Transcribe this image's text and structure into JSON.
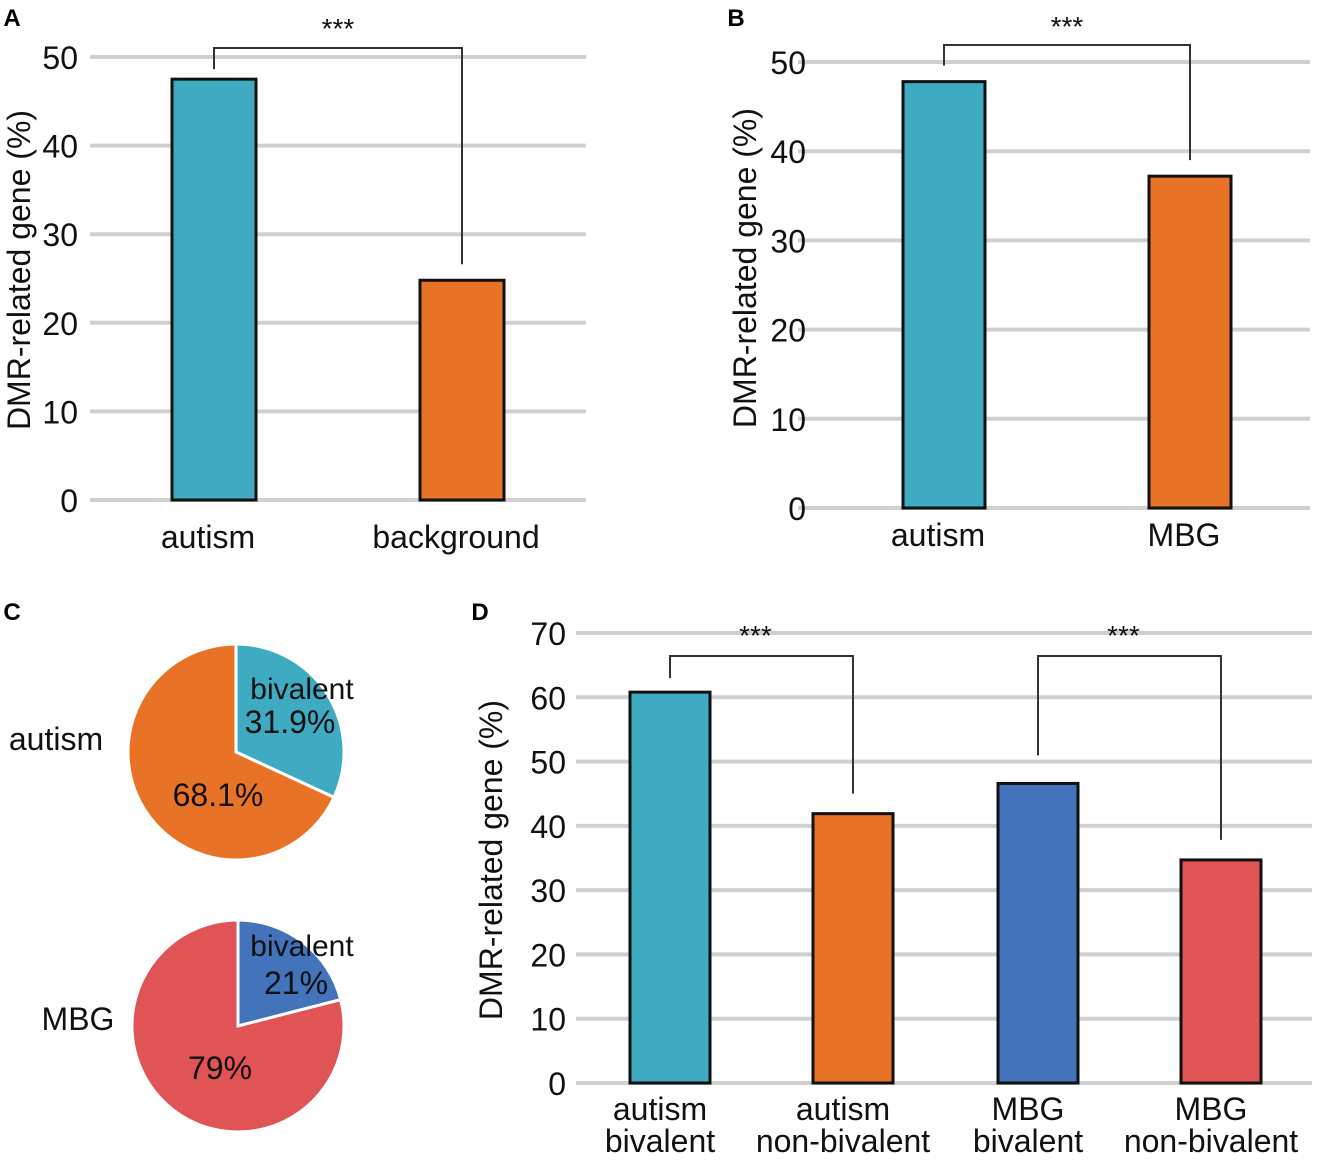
{
  "figure": {
    "colors": {
      "autism": "#3eabc3",
      "background": "#e87326",
      "mbg": "#e87326",
      "non_bivalent": "#e87326",
      "mbg_bivalent": "#4273bb",
      "mbg_non_bivalent": "#e05456",
      "grid": "#d0d0d0",
      "bracket": "#333333",
      "pie_edge": "#ffffff"
    }
  },
  "chart_data": [
    {
      "panel": "A",
      "type": "bar",
      "title": "",
      "xlabel": "",
      "ylabel": "DMR-related gene (%)",
      "ylim": [
        0,
        50
      ],
      "yticks": [
        0,
        10,
        20,
        30,
        40,
        50
      ],
      "grid": true,
      "categories": [
        "autism",
        "background"
      ],
      "values": [
        47.5,
        24.8
      ],
      "significance": [
        {
          "from": 0,
          "to": 1,
          "label": "***"
        }
      ]
    },
    {
      "panel": "B",
      "type": "bar",
      "title": "",
      "xlabel": "",
      "ylabel": "DMR-related gene (%)",
      "ylim": [
        0,
        50
      ],
      "yticks": [
        0,
        10,
        20,
        30,
        40,
        50
      ],
      "grid": true,
      "categories": [
        "autism",
        "MBG"
      ],
      "values": [
        47.8,
        37.2
      ],
      "significance": [
        {
          "from": 0,
          "to": 1,
          "label": "***"
        }
      ]
    },
    {
      "panel": "C",
      "type": "pie",
      "row_label": "autism",
      "slices": [
        {
          "label": "bivalent",
          "value": 31.9,
          "value_label": "31.9%"
        },
        {
          "label": "",
          "value": 68.1,
          "value_label": "68.1%"
        }
      ]
    },
    {
      "panel": "C",
      "type": "pie",
      "row_label": "MBG",
      "slices": [
        {
          "label": "bivalent",
          "value": 21,
          "value_label": "21%"
        },
        {
          "label": "",
          "value": 79,
          "value_label": "79%"
        }
      ]
    },
    {
      "panel": "D",
      "type": "bar",
      "title": "",
      "xlabel": "",
      "ylabel": "DMR-related gene (%)",
      "ylim": [
        0,
        70
      ],
      "yticks": [
        0,
        10,
        20,
        30,
        40,
        50,
        60,
        70
      ],
      "grid": true,
      "categories": [
        [
          "autism",
          "bivalent"
        ],
        [
          "autism",
          "non-bivalent"
        ],
        [
          "MBG",
          "bivalent"
        ],
        [
          "MBG",
          "non-bivalent"
        ]
      ],
      "values": [
        60.8,
        41.9,
        46.6,
        34.7
      ],
      "significance": [
        {
          "from": 0,
          "to": 1,
          "label": "***"
        },
        {
          "from": 2,
          "to": 3,
          "label": "***"
        }
      ]
    }
  ]
}
